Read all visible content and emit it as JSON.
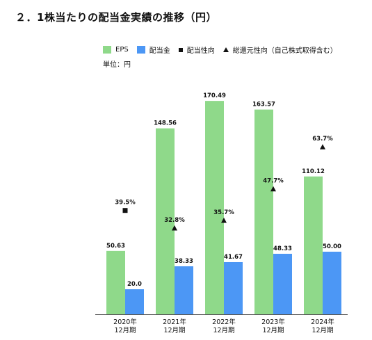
{
  "title": "２．1株当たりの配当金実績の推移（円）",
  "unit_label": "単位：円",
  "legend": {
    "eps": "EPS",
    "dividend": "配当金",
    "payout": "配当性向",
    "total_return": "総還元性向（自己株式取得含む）"
  },
  "colors": {
    "eps": "#8fd98a",
    "dividend": "#4c97f5",
    "marker": "#111111",
    "axis": "#555555"
  },
  "chart_data": {
    "type": "bar",
    "title": "２．1株当たりの配当金実績の推移（円）",
    "ylabel": "単位：円",
    "categories": [
      [
        "2020年",
        "12月期"
      ],
      [
        "2021年",
        "12月期"
      ],
      [
        "2022年",
        "12月期"
      ],
      [
        "2023年",
        "12月期"
      ],
      [
        "2024年",
        "12月期"
      ]
    ],
    "series": [
      {
        "name": "EPS",
        "values": [
          50.63,
          148.56,
          170.49,
          163.57,
          110.12
        ],
        "labels": [
          "50.63",
          "148.56",
          "170.49",
          "163.57",
          "110.12"
        ]
      },
      {
        "name": "配当金",
        "values": [
          20.0,
          38.33,
          41.67,
          48.33,
          50.0
        ],
        "labels": [
          "20.0",
          "38.33",
          "41.67",
          "48.33",
          "50.00"
        ]
      }
    ],
    "ratio_series": [
      {
        "name": "配当性向",
        "marker": "square",
        "points": [
          {
            "index": 0,
            "value": 39.5,
            "label": "39.5%"
          }
        ]
      },
      {
        "name": "総還元性向（自己株式取得含む）",
        "marker": "triangle",
        "points": [
          {
            "index": 1,
            "value": 32.8,
            "label": "32.8%"
          },
          {
            "index": 2,
            "value": 35.7,
            "label": "35.7%"
          },
          {
            "index": 3,
            "value": 47.7,
            "label": "47.7%"
          },
          {
            "index": 4,
            "value": 63.7,
            "label": "63.7%"
          }
        ]
      }
    ],
    "ylim": [
      0,
      180
    ],
    "ratio_ylim": [
      0,
      90
    ],
    "grid": false,
    "legend_position": "top-left"
  }
}
